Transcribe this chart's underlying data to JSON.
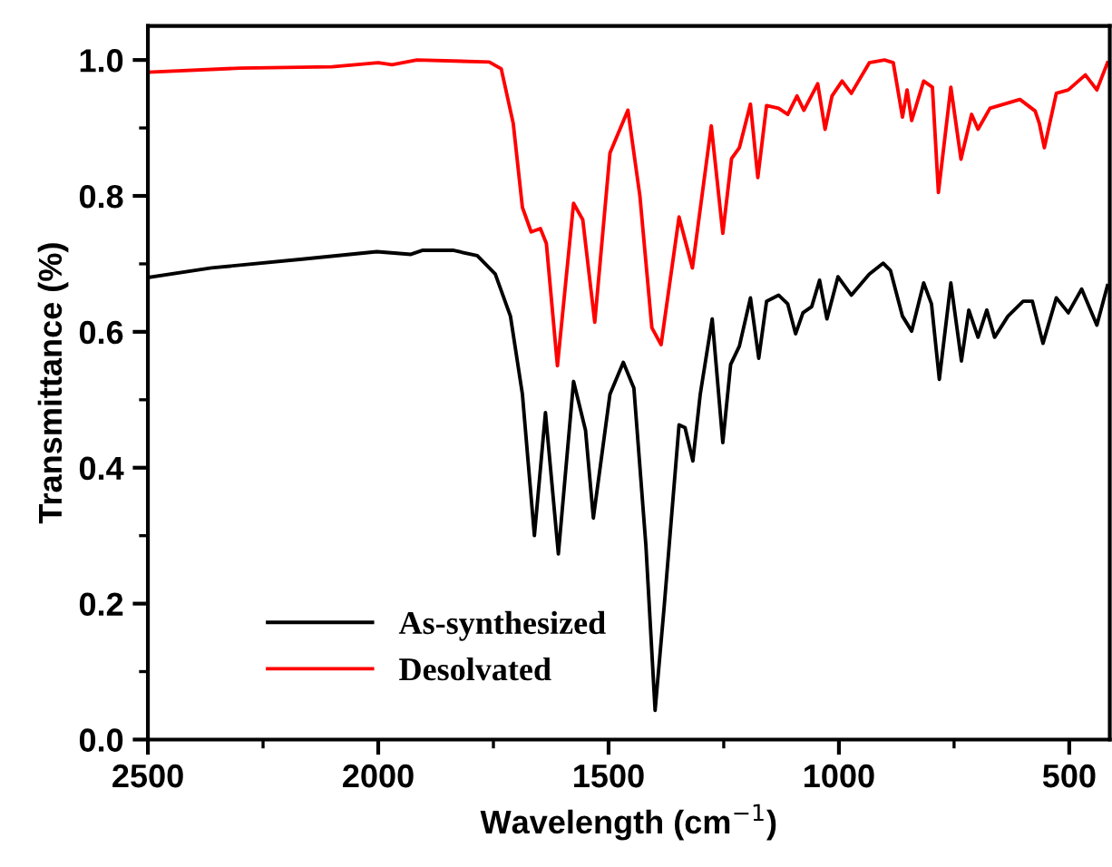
{
  "chart_data": {
    "type": "line",
    "xlabel": "Wavelength (cm$^{−1}$)",
    "ylabel": "Transmittance (%)",
    "xlim": [
      2500,
      412
    ],
    "ylim": [
      0,
      1.05
    ],
    "xticks": [
      2500,
      {
        "value": 2250,
        "label": null
      },
      2000,
      {
        "value": 1750,
        "label": null
      },
      1500,
      {
        "value": 1250,
        "label": null
      },
      1000,
      {
        "value": 750,
        "label": null
      },
      500
    ],
    "yticks": [
      {
        "value": 0,
        "label": "0.0"
      },
      {
        "value": 0.1,
        "label": null
      },
      {
        "value": 0.2,
        "label": "0.2"
      },
      {
        "value": 0.3,
        "label": null
      },
      {
        "value": 0.4,
        "label": "0.4"
      },
      {
        "value": 0.5,
        "label": null
      },
      {
        "value": 0.6,
        "label": "0.6"
      },
      {
        "value": 0.7,
        "label": null
      },
      {
        "value": 0.8,
        "label": "0.8"
      },
      {
        "value": 0.9,
        "label": null
      },
      {
        "value": 1.0,
        "label": "1.0"
      }
    ],
    "grid": false,
    "legend": "bottom left",
    "marker": "none",
    "line_style": "solid",
    "series": [
      {
        "name": "As-synthesized",
        "color": "#000000",
        "x": [
          2500,
          2362,
          2165,
          2003,
          1929,
          1903,
          1838,
          1785,
          1746,
          1713,
          1687,
          1661,
          1637,
          1609,
          1576,
          1550,
          1533,
          1497,
          1468,
          1445,
          1419,
          1399,
          1379,
          1347,
          1334,
          1317,
          1301,
          1275,
          1252,
          1235,
          1216,
          1192,
          1174,
          1157,
          1131,
          1111,
          1094,
          1078,
          1059,
          1042,
          1026,
          1002,
          973,
          934,
          904,
          888,
          862,
          842,
          816,
          799,
          782,
          757,
          734,
          718,
          698,
          679,
          662,
          633,
          600,
          580,
          557,
          528,
          502,
          473,
          440,
          417
        ],
        "values": [
          0.68,
          0.694,
          0.707,
          0.718,
          0.714,
          0.72,
          0.72,
          0.712,
          0.685,
          0.623,
          0.508,
          0.3,
          0.481,
          0.273,
          0.527,
          0.455,
          0.326,
          0.508,
          0.555,
          0.517,
          0.286,
          0.043,
          0.198,
          0.463,
          0.459,
          0.41,
          0.508,
          0.619,
          0.437,
          0.552,
          0.579,
          0.65,
          0.561,
          0.645,
          0.654,
          0.641,
          0.597,
          0.628,
          0.637,
          0.676,
          0.619,
          0.681,
          0.654,
          0.685,
          0.701,
          0.69,
          0.623,
          0.601,
          0.672,
          0.641,
          0.53,
          0.672,
          0.557,
          0.632,
          0.592,
          0.632,
          0.592,
          0.623,
          0.645,
          0.645,
          0.583,
          0.65,
          0.628,
          0.663,
          0.61,
          0.668
        ]
      },
      {
        "name": "Desolvated",
        "color": "#ff0000",
        "x": [
          2500,
          2300,
          2100,
          2000,
          1970,
          1916,
          1759,
          1733,
          1707,
          1687,
          1668,
          1648,
          1635,
          1611,
          1576,
          1556,
          1530,
          1497,
          1458,
          1432,
          1406,
          1386,
          1347,
          1318,
          1277,
          1252,
          1233,
          1216,
          1192,
          1176,
          1157,
          1131,
          1111,
          1091,
          1076,
          1046,
          1030,
          1015,
          993,
          973,
          934,
          901,
          882,
          862,
          852,
          842,
          816,
          797,
          784,
          757,
          735,
          712,
          698,
          672,
          607,
          574,
          565,
          554,
          528,
          502,
          465,
          440,
          417
        ],
        "values": [
          0.982,
          0.988,
          0.99,
          0.996,
          0.993,
          1.0,
          0.997,
          0.987,
          0.907,
          0.783,
          0.747,
          0.752,
          0.73,
          0.55,
          0.789,
          0.765,
          0.614,
          0.863,
          0.926,
          0.8,
          0.606,
          0.581,
          0.769,
          0.694,
          0.903,
          0.745,
          0.855,
          0.871,
          0.935,
          0.827,
          0.933,
          0.929,
          0.92,
          0.947,
          0.926,
          0.965,
          0.898,
          0.947,
          0.969,
          0.951,
          0.996,
          1.0,
          0.996,
          0.916,
          0.956,
          0.911,
          0.969,
          0.96,
          0.805,
          0.96,
          0.854,
          0.92,
          0.898,
          0.929,
          0.942,
          0.925,
          0.907,
          0.871,
          0.951,
          0.956,
          0.978,
          0.956,
          0.996
        ]
      }
    ]
  }
}
